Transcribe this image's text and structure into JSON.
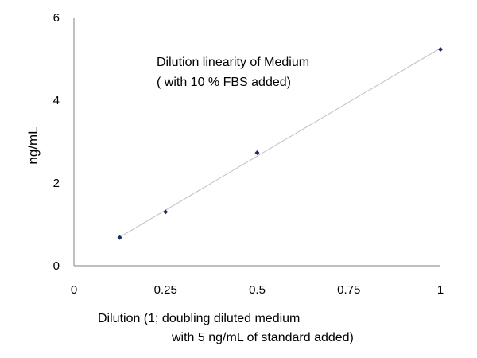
{
  "chart_data": {
    "type": "scatter",
    "title": "",
    "annotation": [
      "Dilution linearity of Medium",
      "( with 10 % FBS added)"
    ],
    "xlabel": [
      "Dilution (1; doubling diluted medium",
      "with 5 ng/mL of standard added)"
    ],
    "ylabel": "ng/mL",
    "xlim": [
      0,
      1
    ],
    "ylim": [
      0,
      6
    ],
    "xticks": [
      "0",
      "0.25",
      "0.5",
      "0.75",
      "1"
    ],
    "yticks": [
      "0",
      "2",
      "4",
      "6"
    ],
    "grid": false,
    "trendline": true,
    "series": [
      {
        "x": [
          0.125,
          0.25,
          0.5,
          1
        ],
        "y": [
          0.68,
          1.3,
          2.73,
          5.23
        ],
        "color": "#1f2d5c"
      }
    ],
    "trendline_color": "#bfbfbf"
  }
}
